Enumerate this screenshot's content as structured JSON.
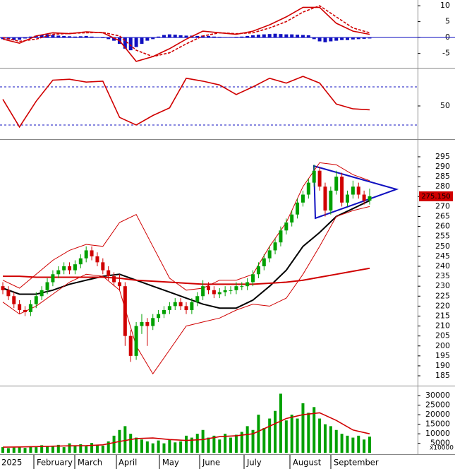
{
  "chart_data": [
    {
      "type": "macd",
      "ylim": [
        -9.3,
        11.8
      ],
      "yticks": [
        10,
        5,
        0,
        -5
      ],
      "zero_line": true,
      "line_x": [
        0,
        3,
        6,
        9,
        12,
        15,
        18,
        21,
        24,
        27,
        30,
        33,
        36,
        39,
        42,
        45,
        48,
        51,
        54,
        57,
        60,
        63,
        66
      ],
      "series": [
        {
          "color": "#d00000",
          "values": [
            -0.5,
            -1.8,
            0.5,
            1.5,
            1.2,
            1.8,
            1.5,
            -1,
            -7.5,
            -6,
            -3.5,
            -0.5,
            2,
            1.5,
            1,
            2,
            4,
            6.5,
            9.5,
            9.5,
            4.5,
            2,
            1
          ]
        },
        {
          "color": "#d00000",
          "dashed": true,
          "values": [
            0,
            -1.2,
            -0.5,
            1,
            1.3,
            1.5,
            1.6,
            0.5,
            -4,
            -6,
            -4.8,
            -2,
            0.5,
            1.5,
            1.2,
            1.5,
            3,
            5,
            8,
            10,
            6.5,
            3,
            1.5
          ]
        }
      ],
      "histogram": {
        "color": "#1010c0",
        "values": [
          -0.5,
          -0.6,
          -0.8,
          -0.7,
          -0.3,
          0.3,
          0.6,
          0.9,
          1,
          0.8,
          0.6,
          0.5,
          0.4,
          0.3,
          0.4,
          0.5,
          0.3,
          0.1,
          -0.2,
          -0.5,
          -1,
          -2,
          -3.5,
          -4,
          -3,
          -2,
          -1,
          -0.5,
          0.3,
          0.8,
          1,
          0.9,
          0.7,
          0.6,
          0.6,
          0.5,
          0.6,
          0.5,
          0.3,
          0.2,
          0.1,
          0.1,
          0.2,
          0.3,
          0.5,
          0.7,
          0.9,
          1,
          1.1,
          1.2,
          1.1,
          1,
          1,
          0.9,
          0.8,
          0.7,
          -0.5,
          -1.2,
          -1.5,
          -1.2,
          -1,
          -0.8,
          -0.8,
          -0.6,
          -0.5,
          -0.4,
          -0.3
        ]
      }
    },
    {
      "type": "rsi",
      "ylim": [
        16.7,
        88.5
      ],
      "yticks": [
        50
      ],
      "levels": [
        70,
        30
      ],
      "level_color": "#1010c0",
      "line_x": [
        0,
        3,
        6,
        9,
        12,
        15,
        18,
        21,
        24,
        27,
        30,
        33,
        36,
        39,
        42,
        45,
        48,
        51,
        54,
        57,
        60,
        63,
        66
      ],
      "series": [
        {
          "color": "#d00000",
          "values": [
            57,
            28,
            55,
            77,
            78,
            75,
            76,
            38,
            30,
            40,
            48,
            79,
            76,
            72,
            62,
            70,
            79,
            74,
            81,
            74,
            52,
            47,
            46
          ]
        }
      ]
    },
    {
      "type": "candlestick",
      "ylim": [
        180.4,
        303.5
      ],
      "yticks": [
        185,
        190,
        195,
        200,
        205,
        210,
        215,
        220,
        225,
        230,
        235,
        240,
        245,
        250,
        255,
        260,
        265,
        270,
        275,
        280,
        285,
        290,
        295
      ],
      "up_color": "#00a000",
      "down_color": "#d00000",
      "last_label": "275.150",
      "open": [
        230,
        228,
        225,
        221,
        218,
        217,
        221,
        225,
        228,
        232,
        236,
        238,
        240,
        238,
        241,
        244,
        248,
        245,
        242,
        238,
        235,
        232,
        230,
        205,
        195,
        210,
        212,
        210,
        214,
        216,
        218,
        220,
        222,
        220,
        218,
        222,
        225,
        230,
        228,
        226,
        227,
        228,
        228,
        230,
        230,
        232,
        236,
        240,
        244,
        248,
        252,
        258,
        262,
        266,
        272,
        276,
        282,
        288,
        280,
        268,
        278,
        285,
        272,
        276,
        280,
        276,
        273
      ],
      "high": [
        232,
        230,
        227,
        223,
        220,
        223,
        227,
        230,
        234,
        238,
        240,
        242,
        242,
        243,
        246,
        250,
        250,
        247,
        244,
        240,
        237,
        236,
        232,
        208,
        212,
        216,
        214,
        216,
        218,
        220,
        222,
        224,
        224,
        222,
        224,
        227,
        233,
        232,
        230,
        229,
        230,
        230,
        232,
        232,
        234,
        238,
        242,
        246,
        250,
        254,
        260,
        264,
        268,
        274,
        278,
        284,
        291,
        290,
        282,
        280,
        288,
        287,
        278,
        283,
        282,
        278,
        279
      ],
      "low": [
        226,
        223,
        219,
        216,
        215,
        215,
        219,
        223,
        226,
        230,
        234,
        236,
        236,
        236,
        239,
        242,
        243,
        240,
        236,
        233,
        230,
        228,
        200,
        192,
        193,
        206,
        200,
        208,
        212,
        214,
        216,
        218,
        218,
        216,
        216,
        220,
        223,
        226,
        224,
        224,
        225,
        226,
        226,
        228,
        228,
        230,
        234,
        238,
        242,
        246,
        250,
        256,
        260,
        264,
        270,
        274,
        280,
        278,
        265,
        266,
        276,
        270,
        270,
        274,
        274,
        271,
        271
      ],
      "close": [
        228,
        225,
        221,
        218,
        217,
        221,
        225,
        228,
        232,
        236,
        238,
        240,
        238,
        241,
        244,
        248,
        245,
        242,
        238,
        235,
        232,
        230,
        205,
        195,
        210,
        212,
        210,
        214,
        216,
        218,
        220,
        222,
        220,
        218,
        222,
        225,
        230,
        228,
        226,
        227,
        228,
        228,
        230,
        230,
        232,
        236,
        240,
        244,
        248,
        252,
        258,
        262,
        266,
        272,
        276,
        282,
        288,
        280,
        268,
        278,
        285,
        272,
        276,
        280,
        276,
        273,
        275.15
      ],
      "line_x": [
        0,
        3,
        6,
        9,
        12,
        15,
        18,
        21,
        24,
        27,
        30,
        33,
        36,
        39,
        42,
        45,
        48,
        51,
        54,
        57,
        60,
        63,
        66
      ],
      "series": [
        {
          "color": "#000000",
          "width": 2,
          "values": [
            229,
            226,
            226,
            228,
            231,
            233,
            235,
            236,
            233,
            230,
            227,
            224,
            221,
            219,
            219,
            223,
            230,
            238,
            250,
            257,
            265,
            269,
            273
          ]
        },
        {
          "color": "#d00000",
          "width": 2,
          "values": [
            235,
            235,
            234.5,
            234.5,
            234.5,
            234.5,
            234.5,
            234,
            233,
            232.5,
            232,
            231.5,
            231,
            231,
            231,
            231,
            231.5,
            232,
            233,
            234.5,
            236,
            237.5,
            239
          ]
        },
        {
          "color": "#d00000",
          "width": 1,
          "values": [
            233,
            229,
            236,
            243,
            248,
            251,
            250,
            262,
            266,
            250,
            234,
            228,
            229,
            233,
            233,
            236,
            250,
            262,
            280,
            292,
            291,
            286,
            283
          ]
        },
        {
          "color": "#d00000",
          "width": 1,
          "values": [
            222,
            216,
            220,
            226,
            232,
            236,
            235,
            228,
            200,
            186,
            198,
            210,
            212,
            214,
            218,
            221,
            220,
            224,
            236,
            250,
            265,
            268,
            270
          ]
        }
      ]
    },
    {
      "type": "volume",
      "ylim": [
        -300,
        34480
      ],
      "yticks": [
        5000,
        10000,
        15000,
        20000,
        25000,
        30000
      ],
      "unit_label": "x10000",
      "color": "#00a000",
      "values": [
        3000,
        2500,
        2800,
        3200,
        2600,
        3500,
        3000,
        4000,
        3200,
        3600,
        4200,
        3000,
        5000,
        3800,
        4500,
        3500,
        5200,
        4000,
        3800,
        6000,
        9000,
        12000,
        14000,
        10000,
        8000,
        7000,
        6000,
        5000,
        6500,
        5000,
        7000,
        5500,
        6000,
        9000,
        8000,
        10000,
        12000,
        8000,
        9000,
        7000,
        10000,
        8000,
        9500,
        11000,
        14000,
        12000,
        20000,
        13000,
        18000,
        22000,
        31000,
        17000,
        20000,
        18000,
        26000,
        21000,
        24000,
        18000,
        15000,
        14000,
        12000,
        10000,
        9000,
        8000,
        9000,
        7000,
        8500
      ],
      "line_x": [
        0,
        3,
        6,
        9,
        12,
        15,
        18,
        21,
        24,
        27,
        30,
        33,
        36,
        39,
        42,
        45,
        48,
        51,
        54,
        57,
        60,
        63,
        66
      ],
      "series": [
        {
          "color": "#d00000",
          "values": [
            3000,
            3100,
            3300,
            3500,
            3700,
            3800,
            4200,
            6000,
            7500,
            7800,
            7000,
            6500,
            7000,
            8500,
            9000,
            10000,
            14000,
            18000,
            20000,
            21000,
            17000,
            12000,
            10000
          ]
        }
      ],
      "x_labels": [
        "2025",
        "February",
        "March",
        "April",
        "May",
        "June",
        "July",
        "August",
        "September"
      ]
    }
  ]
}
